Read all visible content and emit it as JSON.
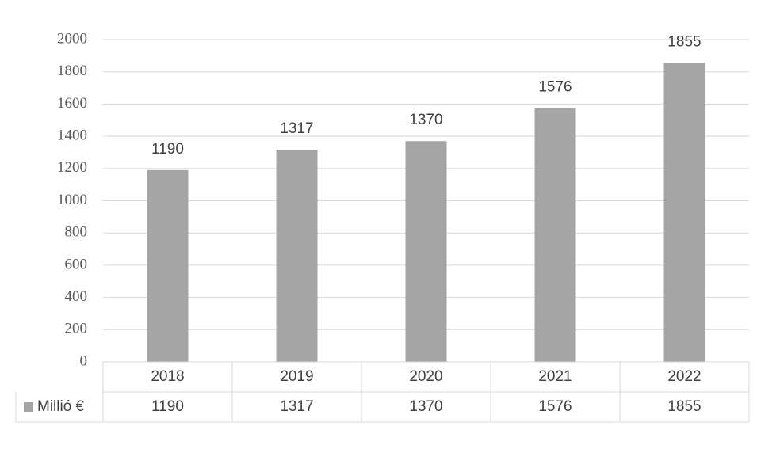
{
  "chart_data": {
    "type": "bar",
    "categories": [
      "2018",
      "2019",
      "2020",
      "2021",
      "2022"
    ],
    "series": [
      {
        "name": "Millió €",
        "color": "#a5a5a5",
        "values": [
          1190,
          1317,
          1370,
          1576,
          1855
        ]
      }
    ],
    "ylim": [
      0,
      2000
    ],
    "yticks": [
      0,
      200,
      400,
      600,
      800,
      1000,
      1200,
      1400,
      1600,
      1800,
      2000
    ],
    "grid": true,
    "data_labels": true,
    "data_table": true
  }
}
